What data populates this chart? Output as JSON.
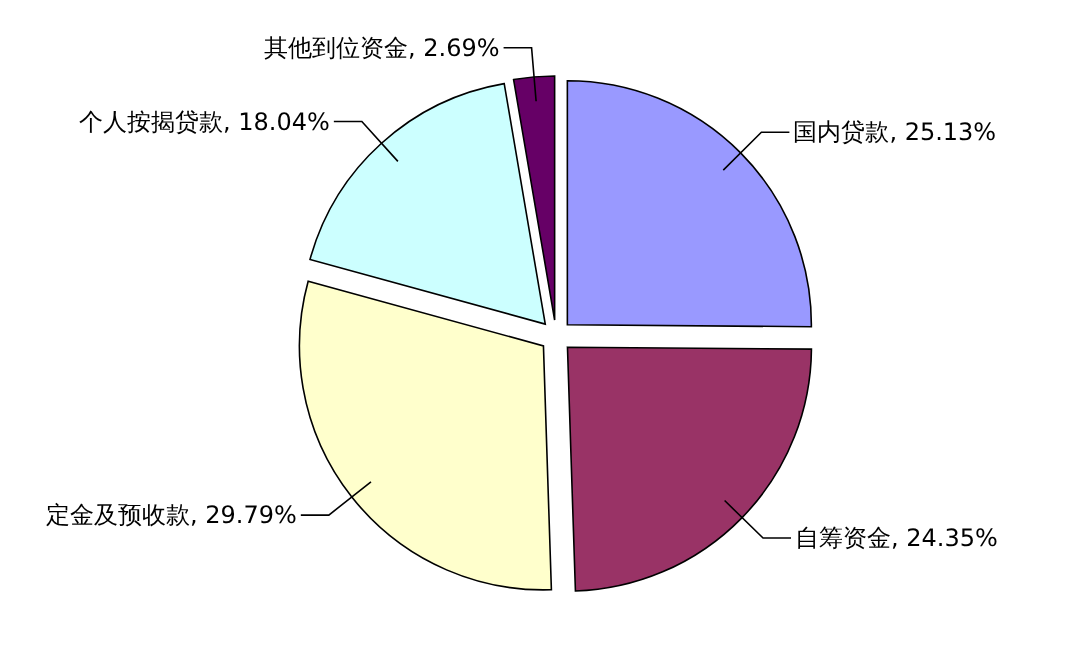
{
  "chart_data": {
    "type": "pie",
    "categories": [
      "国内贷款",
      "自筹资金",
      "定金及预收款",
      "个人按揭贷款",
      "其他到位资金"
    ],
    "values": [
      25.13,
      24.35,
      29.79,
      18.04,
      2.69
    ],
    "value_labels": [
      "25.13%",
      "24.35%",
      "29.79%",
      "18.04%",
      "2.69%"
    ],
    "colors": [
      "#9999ff",
      "#993366",
      "#ffffcc",
      "#ccffff",
      "#660066"
    ],
    "legend": false
  }
}
